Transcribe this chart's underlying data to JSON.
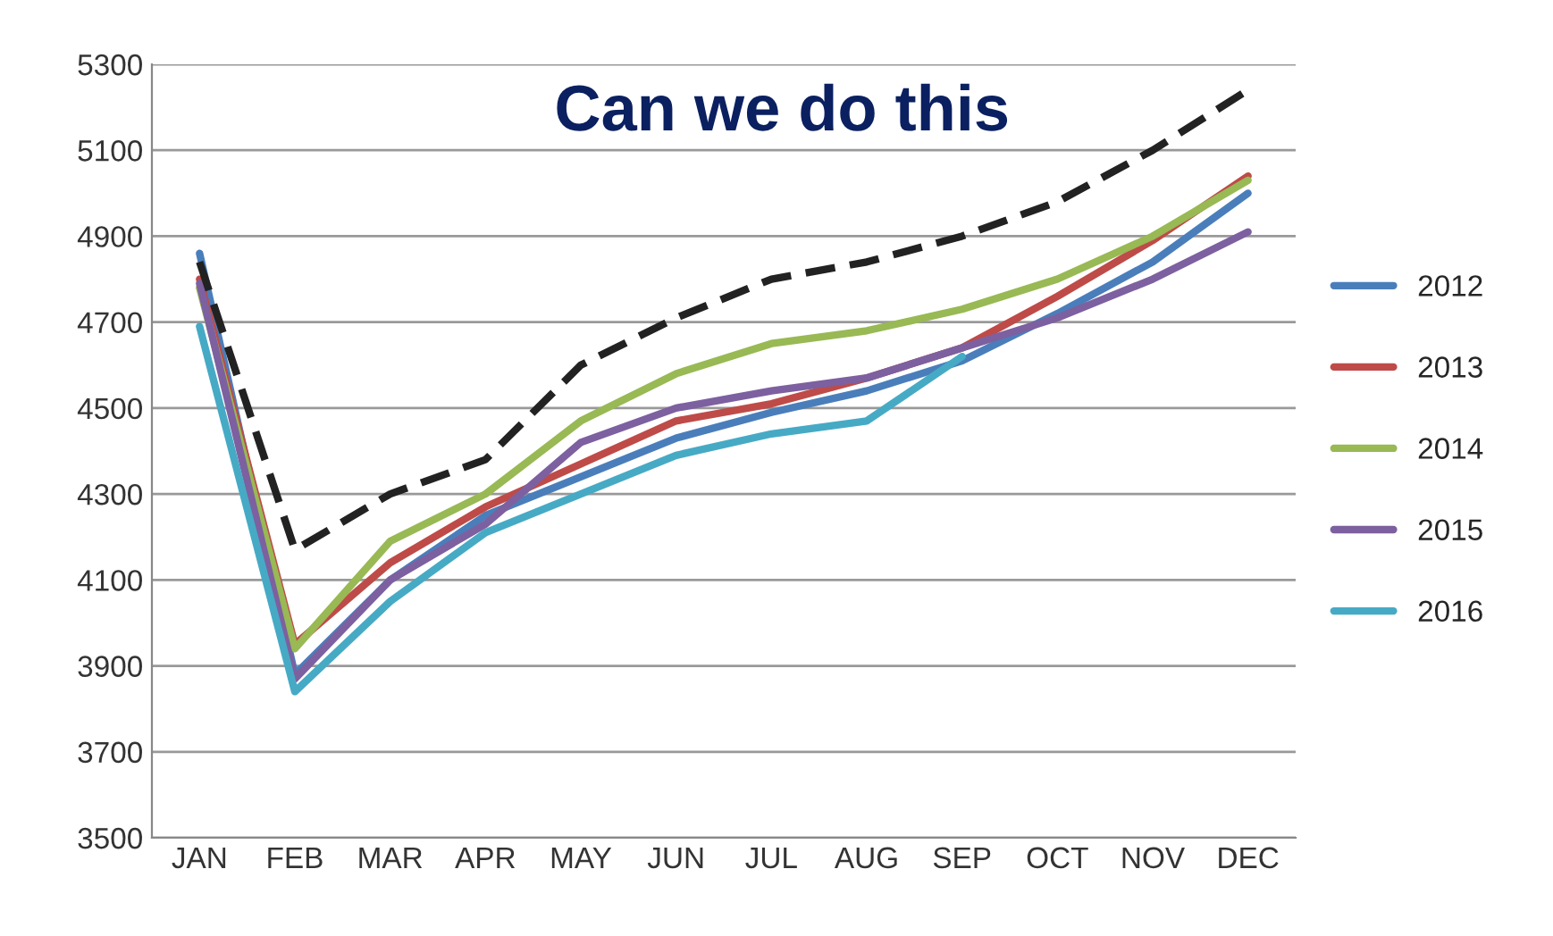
{
  "chart_data": {
    "type": "line",
    "categories": [
      "JAN",
      "FEB",
      "MAR",
      "APR",
      "MAY",
      "JUN",
      "JUL",
      "AUG",
      "SEP",
      "OCT",
      "NOV",
      "DEC"
    ],
    "series": [
      {
        "name": "2012",
        "color": "#4a7ebb",
        "values": [
          4860,
          3880,
          4100,
          4250,
          4340,
          4430,
          4490,
          4540,
          4610,
          4720,
          4840,
          5000
        ]
      },
      {
        "name": "2013",
        "color": "#be4b48",
        "values": [
          4800,
          3950,
          4140,
          4270,
          4370,
          4470,
          4510,
          4570,
          4640,
          4760,
          4890,
          5040
        ]
      },
      {
        "name": "2014",
        "color": "#98b954",
        "values": [
          4780,
          3940,
          4190,
          4300,
          4470,
          4580,
          4650,
          4680,
          4730,
          4800,
          4900,
          5030
        ]
      },
      {
        "name": "2015",
        "color": "#7d60a0",
        "values": [
          4790,
          3870,
          4100,
          4230,
          4420,
          4500,
          4540,
          4570,
          4640,
          4710,
          4800,
          4910
        ]
      },
      {
        "name": "2016",
        "color": "#46aac5",
        "values": [
          4690,
          3840,
          4050,
          4210,
          4300,
          4390,
          4440,
          4470,
          4620,
          null,
          null,
          null
        ]
      },
      {
        "color": "#222222",
        "line_style": "dashed",
        "values": [
          4840,
          4170,
          4300,
          4380,
          4600,
          4710,
          4800,
          4840,
          4900,
          4980,
          5100,
          5240
        ]
      }
    ],
    "ylim": [
      3500,
      5300
    ],
    "yticks": [
      3500,
      3700,
      3900,
      4100,
      4300,
      4500,
      4700,
      4900,
      5100,
      5300
    ],
    "grid": "y",
    "legend": "right",
    "marker": "none",
    "annotations": [
      "Can we do this"
    ]
  }
}
